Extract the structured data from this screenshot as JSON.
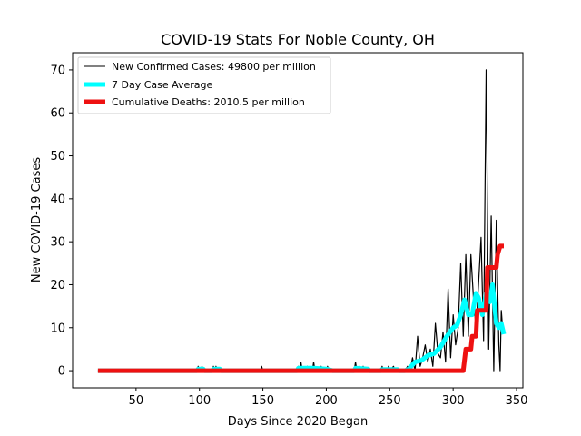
{
  "chart_data": {
    "type": "line",
    "title": "COVID-19 Stats For Noble County, OH",
    "xlabel": "Days Since 2020 Began",
    "ylabel": "New COVID-19 Cases",
    "xlim": [
      0,
      355
    ],
    "ylim": [
      -4,
      74
    ],
    "xticks": [
      50,
      100,
      150,
      200,
      250,
      300,
      350
    ],
    "yticks": [
      0,
      10,
      20,
      30,
      40,
      50,
      60,
      70
    ],
    "grid": false,
    "legend_position": "top-left",
    "series": [
      {
        "name": "New Confirmed Cases: 49800 per million",
        "color": "#000000",
        "points": [
          [
            20,
            0
          ],
          [
            98,
            0
          ],
          [
            99,
            1
          ],
          [
            100,
            0
          ],
          [
            101,
            0
          ],
          [
            102,
            1
          ],
          [
            103,
            0
          ],
          [
            110,
            0
          ],
          [
            111,
            1
          ],
          [
            112,
            0
          ],
          [
            113,
            1
          ],
          [
            114,
            0
          ],
          [
            148,
            0
          ],
          [
            149,
            1
          ],
          [
            150,
            0
          ],
          [
            177,
            0
          ],
          [
            178,
            1
          ],
          [
            179,
            0
          ],
          [
            180,
            2
          ],
          [
            181,
            0
          ],
          [
            184,
            0
          ],
          [
            185,
            1
          ],
          [
            186,
            0
          ],
          [
            189,
            0
          ],
          [
            190,
            2
          ],
          [
            191,
            0
          ],
          [
            195,
            0
          ],
          [
            196,
            1
          ],
          [
            197,
            0
          ],
          [
            200,
            0
          ],
          [
            201,
            1
          ],
          [
            202,
            0
          ],
          [
            222,
            0
          ],
          [
            223,
            2
          ],
          [
            224,
            0
          ],
          [
            226,
            1
          ],
          [
            227,
            0
          ],
          [
            229,
            1
          ],
          [
            230,
            0
          ],
          [
            243,
            0
          ],
          [
            244,
            1
          ],
          [
            245,
            0
          ],
          [
            248,
            0
          ],
          [
            249,
            1
          ],
          [
            250,
            0
          ],
          [
            253,
            1
          ],
          [
            254,
            0
          ],
          [
            262,
            0
          ],
          [
            264,
            1
          ],
          [
            266,
            0
          ],
          [
            268,
            3
          ],
          [
            270,
            0
          ],
          [
            272,
            8
          ],
          [
            274,
            1
          ],
          [
            276,
            3
          ],
          [
            278,
            6
          ],
          [
            280,
            2
          ],
          [
            282,
            5
          ],
          [
            284,
            1
          ],
          [
            286,
            11
          ],
          [
            288,
            4
          ],
          [
            290,
            3
          ],
          [
            292,
            9
          ],
          [
            294,
            2
          ],
          [
            296,
            19
          ],
          [
            298,
            3
          ],
          [
            300,
            13
          ],
          [
            302,
            6
          ],
          [
            304,
            10
          ],
          [
            306,
            25
          ],
          [
            308,
            8
          ],
          [
            310,
            27
          ],
          [
            312,
            8
          ],
          [
            314,
            27
          ],
          [
            316,
            17
          ],
          [
            318,
            10
          ],
          [
            320,
            20
          ],
          [
            322,
            31
          ],
          [
            324,
            7
          ],
          [
            326,
            70
          ],
          [
            328,
            5
          ],
          [
            330,
            36
          ],
          [
            332,
            0
          ],
          [
            334,
            35
          ],
          [
            336,
            6
          ],
          [
            337,
            0
          ],
          [
            338,
            14
          ],
          [
            339,
            10
          ],
          [
            340,
            10
          ]
        ]
      },
      {
        "name": "7 Day Case Average",
        "color": "#00ffff",
        "points": [
          [
            20,
            0
          ],
          [
            98,
            0
          ],
          [
            99,
            0.4
          ],
          [
            103,
            0.4
          ],
          [
            104,
            0
          ],
          [
            110,
            0
          ],
          [
            111,
            0.4
          ],
          [
            116,
            0.4
          ],
          [
            117,
            0
          ],
          [
            177,
            0
          ],
          [
            178,
            0.6
          ],
          [
            190,
            0.6
          ],
          [
            200,
            0.4
          ],
          [
            205,
            0
          ],
          [
            222,
            0
          ],
          [
            223,
            0.6
          ],
          [
            233,
            0.4
          ],
          [
            234,
            0
          ],
          [
            243,
            0
          ],
          [
            244,
            0.3
          ],
          [
            256,
            0.3
          ],
          [
            257,
            0
          ],
          [
            262,
            0
          ],
          [
            265,
            0.4
          ],
          [
            270,
            2
          ],
          [
            275,
            2.4
          ],
          [
            280,
            3.5
          ],
          [
            285,
            4
          ],
          [
            290,
            5.5
          ],
          [
            295,
            8
          ],
          [
            300,
            10
          ],
          [
            303,
            10.5
          ],
          [
            306,
            13
          ],
          [
            309,
            16.5
          ],
          [
            312,
            13
          ],
          [
            315,
            13
          ],
          [
            318,
            18
          ],
          [
            320,
            17
          ],
          [
            323,
            13
          ],
          [
            326,
            18
          ],
          [
            329,
            16
          ],
          [
            331,
            20
          ],
          [
            334,
            11
          ],
          [
            336,
            10
          ],
          [
            338,
            11
          ],
          [
            340,
            8.5
          ]
        ]
      },
      {
        "name": "Cumulative Deaths: 2010.5 per million",
        "color": "#ee1111",
        "points": [
          [
            20,
            0
          ],
          [
            308,
            0
          ],
          [
            310,
            5
          ],
          [
            314,
            5
          ],
          [
            315,
            8
          ],
          [
            318,
            8
          ],
          [
            319,
            14
          ],
          [
            326,
            14
          ],
          [
            327,
            24
          ],
          [
            334,
            24
          ],
          [
            335,
            27
          ],
          [
            337,
            29
          ],
          [
            340,
            29
          ]
        ]
      }
    ]
  }
}
